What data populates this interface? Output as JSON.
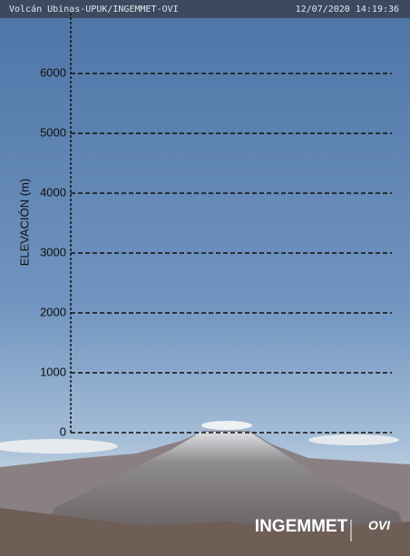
{
  "header": {
    "camera": "Volcán Ubinas-UPUK/INGEMMET-OVI",
    "timestamp": "12/07/2020 14:19:36"
  },
  "axis": {
    "label": "ELEVACIÓN (m)",
    "ylim": [
      0,
      7000
    ],
    "yticks": [
      0,
      1000,
      2000,
      3000,
      4000,
      5000,
      6000
    ]
  },
  "logo": {
    "left": "INGEMMET",
    "right": "OVI"
  }
}
